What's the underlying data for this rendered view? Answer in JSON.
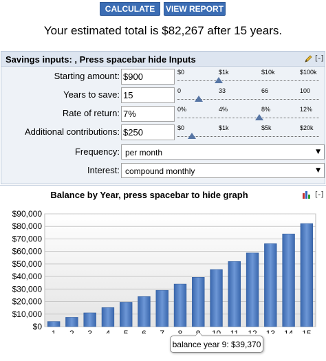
{
  "toolbar": {
    "calculate_label": "CALCULATE",
    "view_report_label": "VIEW REPORT"
  },
  "summary": "Your estimated total is $82,267 after 15 years.",
  "inputs": {
    "title": "Savings inputs: , Press spacebar hide Inputs",
    "collapse_label": "[-]",
    "rows": [
      {
        "label": "Starting amount:",
        "value": "$900",
        "ticks": [
          "$0",
          "$1k",
          "$10k",
          "$100k"
        ],
        "slider_position": 0.29
      },
      {
        "label": "Years to save:",
        "value": "15",
        "ticks": [
          "0",
          "33",
          "66",
          "100"
        ],
        "slider_position": 0.15
      },
      {
        "label": "Rate of return:",
        "value": "7%",
        "ticks": [
          "0%",
          "4%",
          "8%",
          "12%"
        ],
        "slider_position": 0.58
      },
      {
        "label": "Additional contributions:",
        "value": "$250",
        "ticks": [
          "$0",
          "$1k",
          "$5k",
          "$20k"
        ],
        "slider_position": 0.1
      }
    ],
    "frequency_label": "Frequency:",
    "frequency_value": "per month",
    "interest_label": "Interest:",
    "interest_value": "compound monthly"
  },
  "graph": {
    "title": "Balance by Year, press spacebar to hide graph",
    "collapse_label": "[-]",
    "tooltip": "balance year 9: $39,370"
  },
  "chart_data": {
    "type": "bar",
    "title": "Balance by Year, press spacebar to hide graph",
    "categories": [
      "1",
      "2",
      "3",
      "4",
      "5",
      "6",
      "7",
      "8",
      "9",
      "10",
      "11",
      "12",
      "13",
      "14",
      "15"
    ],
    "values": [
      4080,
      7450,
      11000,
      15200,
      19500,
      24000,
      29000,
      34000,
      39370,
      45600,
      52000,
      58800,
      66200,
      74000,
      82267
    ],
    "xlabel": "",
    "ylabel": "",
    "ylim": [
      0,
      90000
    ],
    "yticks": [
      "$0",
      "$10,000",
      "$20,000",
      "$30,000",
      "$40,000",
      "$50,000",
      "$60,000",
      "$70,000",
      "$80,000",
      "$90,000"
    ],
    "grid": true,
    "bar_color": "#4f7fc4"
  }
}
